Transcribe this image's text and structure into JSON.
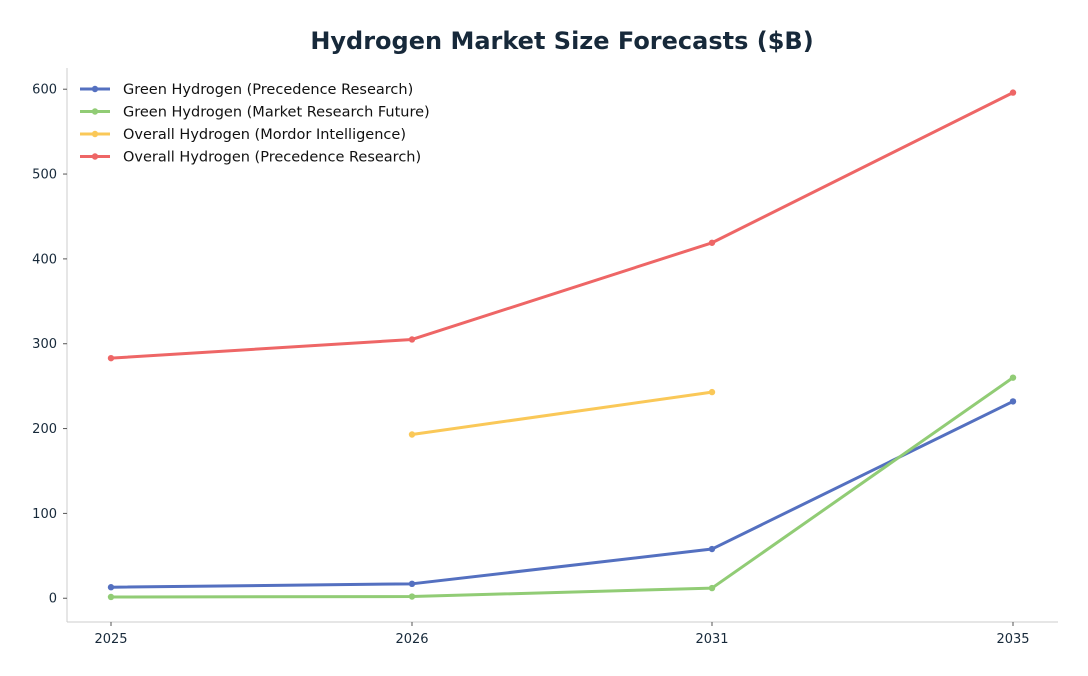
{
  "chart_data": {
    "type": "line",
    "title": "Hydrogen Market Size Forecasts ($B)",
    "xlabel": "",
    "ylabel": "",
    "categories": [
      "2025",
      "2026",
      "2031",
      "2035"
    ],
    "ylim": [
      -28,
      625
    ],
    "yticks": [
      0,
      100,
      200,
      300,
      400,
      500,
      600
    ],
    "grid": false,
    "legend_position": "top-left",
    "series": [
      {
        "name": "Green Hydrogen (Precedence Research)",
        "color": "#5470c0",
        "values": [
          13,
          17,
          58,
          232
        ]
      },
      {
        "name": "Green Hydrogen (Market Research Future)",
        "color": "#91cc75",
        "values": [
          1.5,
          2,
          12,
          260
        ]
      },
      {
        "name": "Overall Hydrogen (Mordor Intelligence)",
        "color": "#fac858",
        "values": [
          null,
          193,
          243,
          null
        ]
      },
      {
        "name": "Overall Hydrogen (Precedence Research)",
        "color": "#ee6666",
        "values": [
          283,
          305,
          419,
          596
        ]
      }
    ]
  }
}
